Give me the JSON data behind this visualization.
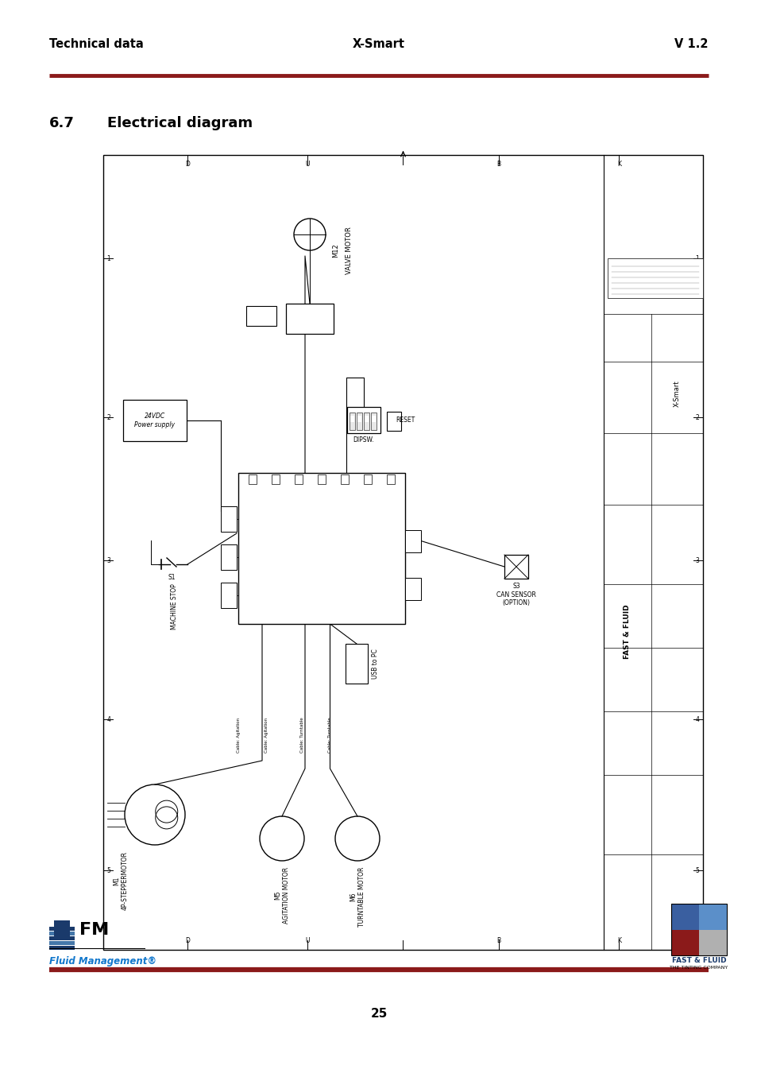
{
  "title_left": "Technical data",
  "title_center": "X-Smart",
  "title_right": "V 1.2",
  "section_number": "6.7",
  "section_title": "Electrical diagram",
  "page_number": "25",
  "header_line_color": "#8B1A1A",
  "footer_line_color": "#8B1A1A",
  "bg_color": "#ffffff",
  "title_fontsize": 10.5,
  "section_fontsize": 13,
  "diagram_labels": {
    "valve_motor": "VALVE MOTOR",
    "m12": "M12",
    "dipsw": "DIPSW.",
    "reset": "RESET",
    "machine_stop": "MACHINE STOP",
    "s1": "S1",
    "power_supply": "24VDC\nPower supply",
    "s3": "S3",
    "can_sensor": "CAN SENSOR\n(OPTION)",
    "usb_to_pc": "USB to PC",
    "m1": "M1\n4P-STEPPERMOTOR",
    "m5": "M5\nAGITATION MOTOR",
    "m6": "M6\nTURNTABLE MOTOR",
    "fast_fluid": "FAST & FLUID",
    "x_smart_label": "X-Smart"
  }
}
